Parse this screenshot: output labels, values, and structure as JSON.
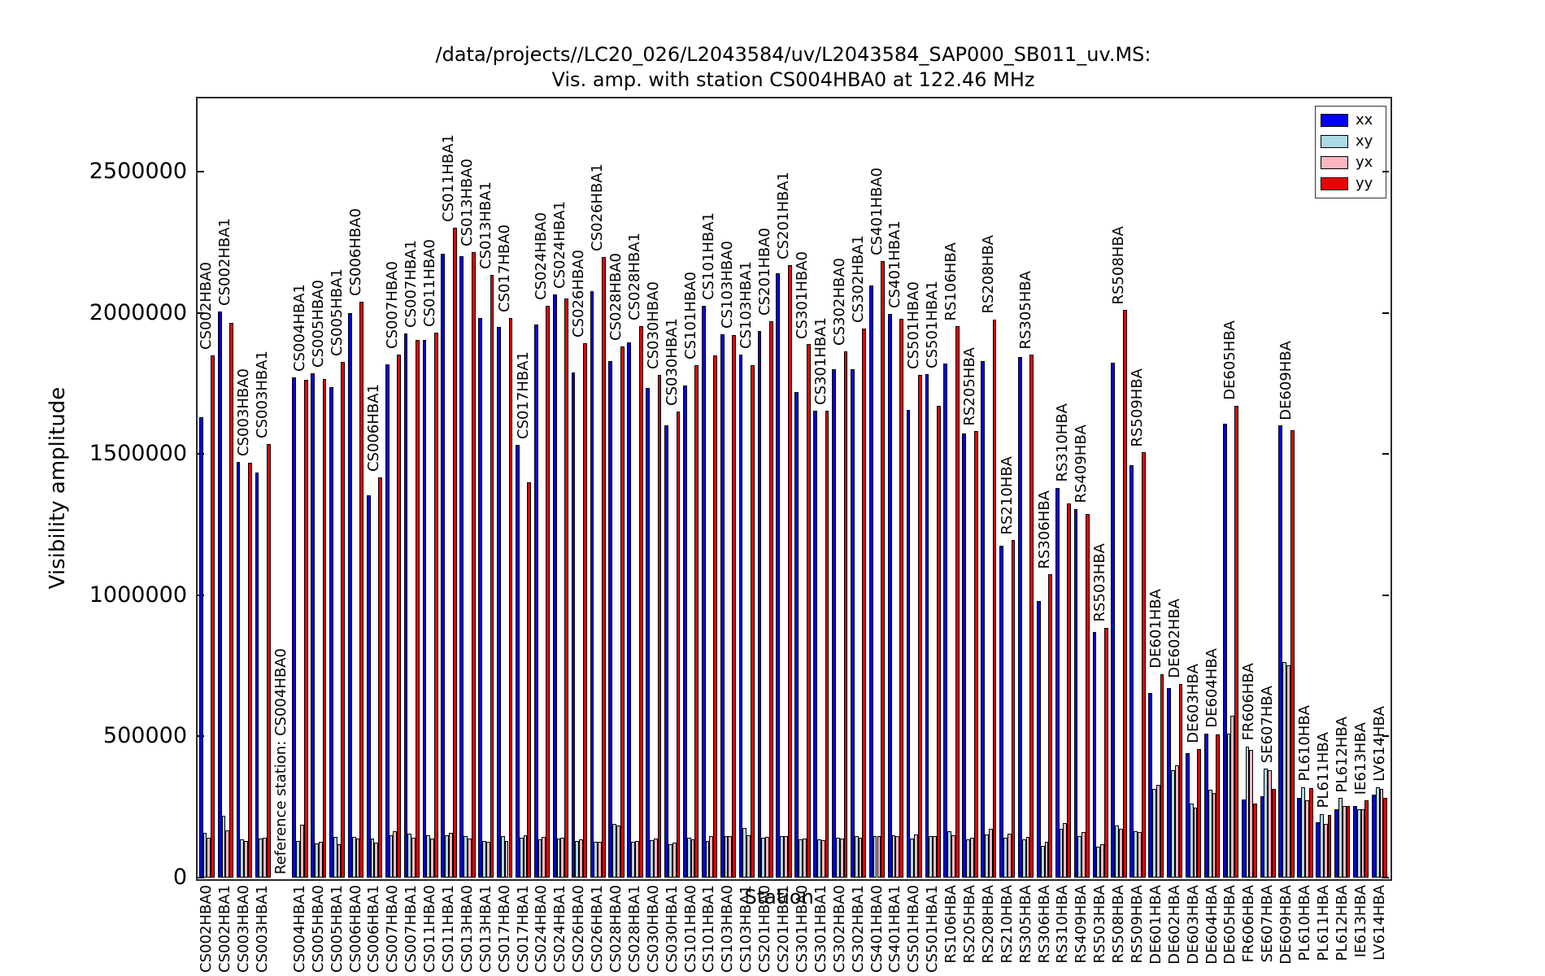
{
  "chart_data": {
    "type": "bar",
    "title_line1": "/data/projects//LC20_026/L2043584/uv/L2043584_SAP000_SB011_uv.MS:",
    "title_line2": "Vis. amp. with station CS004HBA0 at 122.46 MHz",
    "xlabel": "Station",
    "ylabel": "Visibility amplitude",
    "ylim": [
      0,
      2759000
    ],
    "yticks": [
      0,
      500000,
      1000000,
      1500000,
      2000000,
      2500000
    ],
    "grid": false,
    "legend_position": "upper right",
    "legend": [
      "xx",
      "xy",
      "yx",
      "yy"
    ],
    "series_colors": {
      "xx": "#0000ee",
      "xy": "#add8e6",
      "yx": "#ffb6c1",
      "yy": "#ee0000"
    },
    "reference_annotation": "Reference station: CS004HBA0",
    "reference_station": "CS004HBA0",
    "stations": [
      {
        "name": "CS002HBA0",
        "xx": 1630000,
        "xy": 158000,
        "yx": 142000,
        "yy": 1848000
      },
      {
        "name": "CS002HBA1",
        "xx": 2005000,
        "xy": 220000,
        "yx": 168000,
        "yy": 1965000
      },
      {
        "name": "CS003HBA0",
        "xx": 1473000,
        "xy": 134000,
        "yx": 129000,
        "yy": 1470000
      },
      {
        "name": "CS003HBA1",
        "xx": 1435000,
        "xy": 139000,
        "yx": 141000,
        "yy": 1534000
      },
      {
        "name": "CS004HBA0",
        "is_reference": true,
        "xx": null,
        "xy": null,
        "yx": null,
        "yy": null
      },
      {
        "name": "CS004HBA1",
        "xx": 1770000,
        "xy": 131000,
        "yx": 187000,
        "yy": 1763000
      },
      {
        "name": "CS005HBA0",
        "xx": 1787000,
        "xy": 120000,
        "yx": 126000,
        "yy": 1765000
      },
      {
        "name": "CS005HBA1",
        "xx": 1737000,
        "xy": 144000,
        "yx": 117000,
        "yy": 1826000
      },
      {
        "name": "CS006HBA0",
        "xx": 1998000,
        "xy": 144000,
        "yx": 139000,
        "yy": 2038000
      },
      {
        "name": "CS006HBA1",
        "xx": 1353000,
        "xy": 137000,
        "yx": 123000,
        "yy": 1416000
      },
      {
        "name": "CS007HBA0",
        "xx": 1818000,
        "xy": 150000,
        "yx": 165000,
        "yy": 1852000
      },
      {
        "name": "CS007HBA1",
        "xx": 1928000,
        "xy": 155000,
        "yx": 141000,
        "yy": 1904000
      },
      {
        "name": "CS011HBA0",
        "xx": 1904000,
        "xy": 150000,
        "yx": 139000,
        "yy": 1930000
      },
      {
        "name": "CS011HBA1",
        "xx": 2209000,
        "xy": 150000,
        "yx": 158000,
        "yy": 2302000
      },
      {
        "name": "CS013HBA0",
        "xx": 2201000,
        "xy": 147000,
        "yx": 137000,
        "yy": 2214000
      },
      {
        "name": "CS013HBA1",
        "xx": 1983000,
        "xy": 131000,
        "yx": 126000,
        "yy": 2134000
      },
      {
        "name": "CS017HBA0",
        "xx": 1949000,
        "xy": 147000,
        "yx": 131000,
        "yy": 1981000
      },
      {
        "name": "CS017HBA1",
        "xx": 1532000,
        "xy": 141000,
        "yx": 149000,
        "yy": 1401000
      },
      {
        "name": "CS024HBA0",
        "xx": 1959000,
        "xy": 134000,
        "yx": 144000,
        "yy": 2026000
      },
      {
        "name": "CS024HBA1",
        "xx": 2064000,
        "xy": 137000,
        "yx": 141000,
        "yy": 2052000
      },
      {
        "name": "CS026HBA0",
        "xx": 1789000,
        "xy": 131000,
        "yx": 134000,
        "yy": 1892000
      },
      {
        "name": "CS026HBA1",
        "xx": 2078000,
        "xy": 126000,
        "yx": 126000,
        "yy": 2198000
      },
      {
        "name": "CS028HBA0",
        "xx": 1828000,
        "xy": 190000,
        "yx": 185000,
        "yy": 1882000
      },
      {
        "name": "CS028HBA1",
        "xx": 1895000,
        "xy": 126000,
        "yx": 129000,
        "yy": 1952000
      },
      {
        "name": "CS030HBA0",
        "xx": 1735000,
        "xy": 132000,
        "yx": 137000,
        "yy": 1780000
      },
      {
        "name": "CS030HBA1",
        "xx": 1600000,
        "xy": 119000,
        "yx": 124000,
        "yy": 1650000
      },
      {
        "name": "CS101HBA0",
        "xx": 1743000,
        "xy": 142000,
        "yx": 134000,
        "yy": 1815000
      },
      {
        "name": "CS101HBA1",
        "xx": 2026000,
        "xy": 129000,
        "yx": 146000,
        "yy": 1849000
      },
      {
        "name": "CS103HBA0",
        "xx": 1925000,
        "xy": 146000,
        "yx": 146000,
        "yy": 1920000
      },
      {
        "name": "CS103HBA1",
        "xx": 1851000,
        "xy": 177000,
        "yx": 150000,
        "yy": 1815000
      },
      {
        "name": "CS201HBA0",
        "xx": 1935000,
        "xy": 142000,
        "yx": 144000,
        "yy": 1970000
      },
      {
        "name": "CS201HBA1",
        "xx": 2139000,
        "xy": 146000,
        "yx": 146000,
        "yy": 2168000
      },
      {
        "name": "CS301HBA0",
        "xx": 1720000,
        "xy": 134000,
        "yx": 139000,
        "yy": 1888000
      },
      {
        "name": "CS301HBA1",
        "xx": 1652000,
        "xy": 134000,
        "yx": 132000,
        "yy": 1652000
      },
      {
        "name": "CS302HBA0",
        "xx": 1800000,
        "xy": 142000,
        "yx": 137000,
        "yy": 1863000
      },
      {
        "name": "CS302HBA1",
        "xx": 1800000,
        "xy": 148000,
        "yx": 142000,
        "yy": 1944000
      },
      {
        "name": "CS401HBA0",
        "xx": 2098000,
        "xy": 146000,
        "yx": 146000,
        "yy": 2182000
      },
      {
        "name": "CS401HBA1",
        "xx": 1997000,
        "xy": 149000,
        "yx": 148000,
        "yy": 1980000
      },
      {
        "name": "CS501HBA0",
        "xx": 1657000,
        "xy": 139000,
        "yx": 152000,
        "yy": 1780000
      },
      {
        "name": "CS501HBA1",
        "xx": 1784000,
        "xy": 147000,
        "yx": 147000,
        "yy": 1671000
      },
      {
        "name": "RS106HBA",
        "xx": 1821000,
        "xy": 164000,
        "yx": 150000,
        "yy": 1952000
      },
      {
        "name": "RS205HBA",
        "xx": 1572000,
        "xy": 135000,
        "yx": 141000,
        "yy": 1580000
      },
      {
        "name": "RS208HBA",
        "xx": 1830000,
        "xy": 154000,
        "yx": 172000,
        "yy": 1976000
      },
      {
        "name": "RS210HBA",
        "xx": 1176000,
        "xy": 141000,
        "yx": 156000,
        "yy": 1195000
      },
      {
        "name": "RS305HBA",
        "xx": 1844000,
        "xy": 135000,
        "yx": 145000,
        "yy": 1851000
      },
      {
        "name": "RS306HBA",
        "xx": 980000,
        "xy": 112000,
        "yx": 128000,
        "yy": 1074000
      },
      {
        "name": "RS310HBA",
        "xx": 1380000,
        "xy": 172000,
        "yx": 193000,
        "yy": 1325000
      },
      {
        "name": "RS409HBA",
        "xx": 1305000,
        "xy": 147000,
        "yx": 162000,
        "yy": 1288000
      },
      {
        "name": "RS503HBA",
        "xx": 870000,
        "xy": 109000,
        "yx": 119000,
        "yy": 885000
      },
      {
        "name": "RS508HBA",
        "xx": 1823000,
        "xy": 183000,
        "yx": 172000,
        "yy": 2010000
      },
      {
        "name": "RS509HBA",
        "xx": 1459000,
        "xy": 164000,
        "yx": 162000,
        "yy": 1505000
      },
      {
        "name": "DE601HBA",
        "xx": 655000,
        "xy": 315000,
        "yx": 327000,
        "yy": 721000
      },
      {
        "name": "DE602HBA",
        "xx": 671000,
        "xy": 380000,
        "yx": 397000,
        "yy": 686000
      },
      {
        "name": "DE603HBA",
        "xx": 441000,
        "xy": 262000,
        "yx": 248000,
        "yy": 456000
      },
      {
        "name": "DE604HBA",
        "xx": 510000,
        "xy": 310000,
        "yx": 300000,
        "yy": 508000
      },
      {
        "name": "DE605HBA",
        "xx": 1607000,
        "xy": 510000,
        "yx": 572000,
        "yy": 1670000
      },
      {
        "name": "FR606HBA",
        "xx": 276000,
        "xy": 464000,
        "yx": 453000,
        "yy": 261000
      },
      {
        "name": "SE607HBA",
        "xx": 288000,
        "xy": 386000,
        "yx": 381000,
        "yy": 314000
      },
      {
        "name": "DE609HBA",
        "xx": 1600000,
        "xy": 764000,
        "yx": 752000,
        "yy": 1583000
      },
      {
        "name": "PL610HBA",
        "xx": 281000,
        "xy": 321000,
        "yx": 273000,
        "yy": 316000
      },
      {
        "name": "PL611HBA",
        "xx": 196000,
        "xy": 225000,
        "yx": 190000,
        "yy": 223000
      },
      {
        "name": "PL612HBA",
        "xx": 242000,
        "xy": 281000,
        "yx": 254000,
        "yy": 254000
      },
      {
        "name": "IE613HBA",
        "xx": 254000,
        "xy": 242000,
        "yx": 242000,
        "yy": 273000
      },
      {
        "name": "LV614HBA",
        "xx": 295000,
        "xy": 321000,
        "yx": 314000,
        "yy": 283000
      }
    ]
  }
}
